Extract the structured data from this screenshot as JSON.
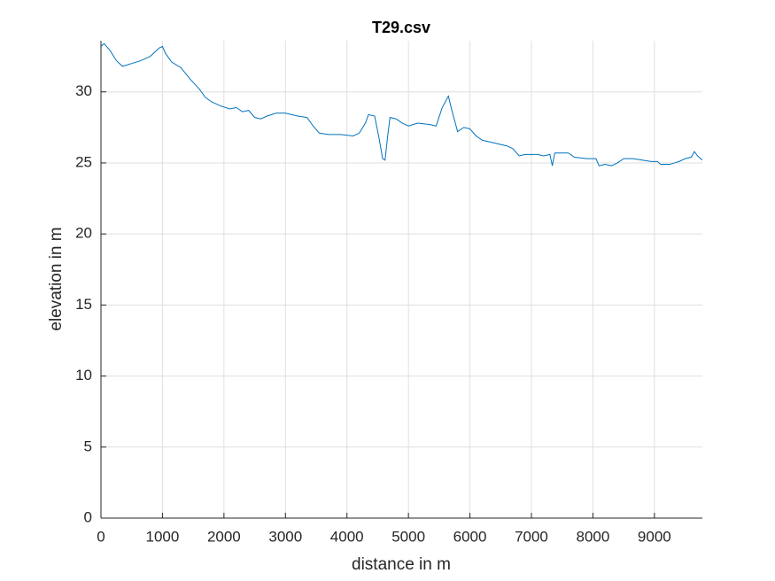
{
  "chart_data": {
    "type": "line",
    "title": "T29.csv",
    "x_label": "distance in m",
    "y_label": "elevation in m",
    "x": [
      0,
      50,
      150,
      250,
      350,
      500,
      650,
      800,
      950,
      1000,
      1050,
      1150,
      1300,
      1450,
      1600,
      1700,
      1800,
      1950,
      2100,
      2200,
      2300,
      2400,
      2500,
      2600,
      2700,
      2850,
      3000,
      3200,
      3350,
      3450,
      3550,
      3700,
      3900,
      4100,
      4200,
      4300,
      4350,
      4450,
      4520,
      4580,
      4620,
      4660,
      4700,
      4800,
      4900,
      5000,
      5150,
      5350,
      5450,
      5550,
      5650,
      5700,
      5800,
      5900,
      6000,
      6100,
      6200,
      6400,
      6600,
      6700,
      6800,
      6900,
      7000,
      7100,
      7200,
      7300,
      7340,
      7380,
      7500,
      7600,
      7700,
      7900,
      8050,
      8100,
      8200,
      8300,
      8400,
      8500,
      8650,
      8800,
      8950,
      9050,
      9100,
      9250,
      9400,
      9500,
      9600,
      9650,
      9700,
      9780
    ],
    "values": [
      33.2,
      33.4,
      32.9,
      32.2,
      31.8,
      32.0,
      32.2,
      32.5,
      33.1,
      33.2,
      32.7,
      32.1,
      31.7,
      30.9,
      30.2,
      29.6,
      29.3,
      29.0,
      28.8,
      28.9,
      28.6,
      28.7,
      28.2,
      28.1,
      28.3,
      28.5,
      28.5,
      28.3,
      28.2,
      27.6,
      27.1,
      27.0,
      27.0,
      26.9,
      27.1,
      27.8,
      28.4,
      28.3,
      26.8,
      25.3,
      25.2,
      26.8,
      28.2,
      28.1,
      27.8,
      27.6,
      27.8,
      27.7,
      27.6,
      28.9,
      29.7,
      28.8,
      27.2,
      27.5,
      27.4,
      26.9,
      26.6,
      26.4,
      26.2,
      26.0,
      25.5,
      25.6,
      25.6,
      25.6,
      25.5,
      25.6,
      24.8,
      25.7,
      25.7,
      25.7,
      25.4,
      25.3,
      25.3,
      24.8,
      24.9,
      24.8,
      25.0,
      25.3,
      25.3,
      25.2,
      25.1,
      25.1,
      24.9,
      24.9,
      25.1,
      25.3,
      25.4,
      25.8,
      25.5,
      25.2
    ],
    "color": "#0072bd",
    "xlim": [
      0,
      9780
    ],
    "ylim": [
      0,
      33.6
    ],
    "xticks": [
      0,
      1000,
      2000,
      3000,
      4000,
      5000,
      6000,
      7000,
      8000,
      9000
    ],
    "yticks": [
      0,
      5,
      10,
      15,
      20,
      25,
      30
    ],
    "grid": true
  }
}
